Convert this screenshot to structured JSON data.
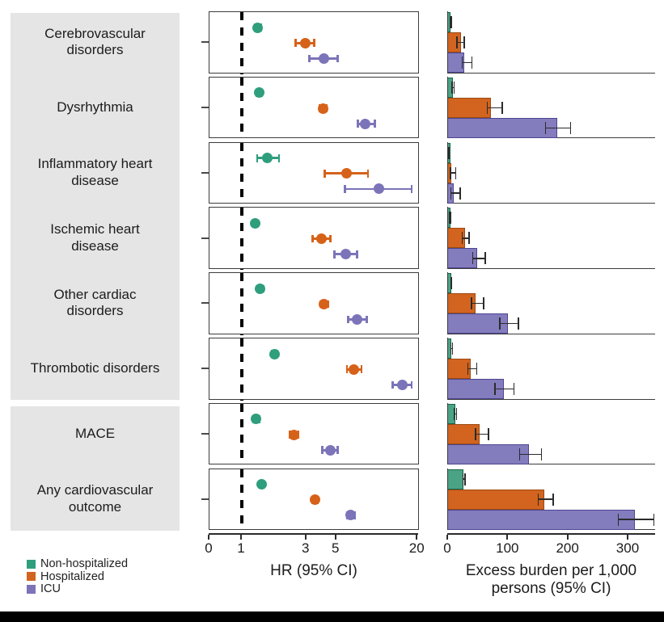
{
  "legend": {
    "items": [
      {
        "label": "Non-hospitalized",
        "color": "#2f9e7d"
      },
      {
        "label": "Hospitalized",
        "color": "#d2641f"
      },
      {
        "label": "ICU",
        "color": "#7b74b8"
      }
    ]
  },
  "colors": {
    "non_hospitalized_point": "#2f9e7d",
    "non_hospitalized_bar_fill": "#4aa385",
    "non_hospitalized_bar_border": "#17654c",
    "hospitalized_point": "#d6621a",
    "hospitalized_bar_fill": "#d2641f",
    "hospitalized_bar_border": "#9c4a12",
    "icu_point": "#7b74b8",
    "icu_bar_fill": "#837cbd",
    "icu_bar_border": "#4d4691",
    "label_box": "#e5e5e5",
    "reference_line": "#000000"
  },
  "categories": [
    "Cerebrovascular disorders",
    "Dysrhythmia",
    "Inflammatory heart disease",
    "Ischemic heart disease",
    "Other cardiac disorders",
    "Thrombotic disorders",
    "MACE",
    "Any cardiovascular outcome"
  ],
  "chart_data": [
    {
      "type": "scatter",
      "subtype": "forest-plot",
      "xlabel": "HR (95% CI)",
      "xscale": "log",
      "xticks": [
        0,
        1,
        3,
        5,
        20
      ],
      "reference_line_x": 1,
      "legend_position": "bottom-left",
      "grid": false,
      "categories": [
        "Cerebrovascular disorders",
        "Dysrhythmia",
        "Inflammatory heart disease",
        "Ischemic heart disease",
        "Other cardiac disorders",
        "Thrombotic disorders",
        "MACE",
        "Any cardiovascular outcome"
      ],
      "series": [
        {
          "name": "Non-hospitalized",
          "values": [
            {
              "hr": 1.31,
              "lo": 1.25,
              "hi": 1.38
            },
            {
              "hr": 1.34,
              "lo": 1.28,
              "hi": 1.4
            },
            {
              "hr": 1.54,
              "lo": 1.3,
              "hi": 1.89
            },
            {
              "hr": 1.25,
              "lo": 1.2,
              "hi": 1.31
            },
            {
              "hr": 1.37,
              "lo": 1.31,
              "hi": 1.44
            },
            {
              "hr": 1.75,
              "lo": 1.67,
              "hi": 1.84
            },
            {
              "hr": 1.28,
              "lo": 1.22,
              "hi": 1.35
            },
            {
              "hr": 1.41,
              "lo": 1.38,
              "hi": 1.45
            }
          ]
        },
        {
          "name": "Hospitalized",
          "values": [
            {
              "hr": 2.94,
              "lo": 2.5,
              "hi": 3.45
            },
            {
              "hr": 3.99,
              "lo": 3.78,
              "hi": 4.22
            },
            {
              "hr": 5.96,
              "lo": 4.1,
              "hi": 8.6
            },
            {
              "hr": 3.88,
              "lo": 3.33,
              "hi": 4.52
            },
            {
              "hr": 4.06,
              "lo": 3.8,
              "hi": 4.35
            },
            {
              "hr": 6.78,
              "lo": 6.0,
              "hi": 7.7
            },
            {
              "hr": 2.44,
              "lo": 2.27,
              "hi": 2.63
            },
            {
              "hr": 3.5,
              "lo": 3.35,
              "hi": 3.66
            }
          ]
        },
        {
          "name": "ICU",
          "values": [
            {
              "hr": 4.03,
              "lo": 3.17,
              "hi": 5.12
            },
            {
              "hr": 8.24,
              "lo": 7.2,
              "hi": 9.7
            },
            {
              "hr": 10.4,
              "lo": 5.8,
              "hi": 18.1
            },
            {
              "hr": 5.88,
              "lo": 4.85,
              "hi": 7.15
            },
            {
              "hr": 7.16,
              "lo": 6.1,
              "hi": 8.4
            },
            {
              "hr": 15.4,
              "lo": 13.1,
              "hi": 18.1
            },
            {
              "hr": 4.52,
              "lo": 3.93,
              "hi": 5.15
            },
            {
              "hr": 6.39,
              "lo": 6.0,
              "hi": 6.85
            }
          ]
        }
      ]
    },
    {
      "type": "bar",
      "subtype": "horizontal-grouped",
      "xlabel_line1": "Excess burden per 1,000",
      "xlabel_line2": "persons (95% CI)",
      "xticks": [
        0,
        100,
        200,
        300
      ],
      "xlim": [
        0,
        345
      ],
      "grid": false,
      "categories": [
        "Cerebrovascular disorders",
        "Dysrhythmia",
        "Inflammatory heart disease",
        "Ischemic heart disease",
        "Other cardiac disorders",
        "Thrombotic disorders",
        "MACE",
        "Any cardiovascular outcome"
      ],
      "series": [
        {
          "name": "Non-hospitalized",
          "values": [
            {
              "est": 4,
              "lo": 3,
              "hi": 7
            },
            {
              "est": 8,
              "lo": 6,
              "hi": 11
            },
            {
              "est": 1,
              "lo": 0,
              "hi": 3
            },
            {
              "est": 3,
              "lo": 2,
              "hi": 6
            },
            {
              "est": 5,
              "lo": 4,
              "hi": 7
            },
            {
              "est": 5,
              "lo": 4,
              "hi": 8
            },
            {
              "est": 12,
              "lo": 9,
              "hi": 15
            },
            {
              "est": 26,
              "lo": 24,
              "hi": 29
            }
          ]
        },
        {
          "name": "Hospitalized",
          "values": [
            {
              "est": 21,
              "lo": 14,
              "hi": 28
            },
            {
              "est": 71,
              "lo": 64,
              "hi": 91
            },
            {
              "est": 6,
              "lo": 3,
              "hi": 14
            },
            {
              "est": 28,
              "lo": 23,
              "hi": 36
            },
            {
              "est": 46,
              "lo": 38,
              "hi": 60
            },
            {
              "est": 37,
              "lo": 32,
              "hi": 49
            },
            {
              "est": 52,
              "lo": 45,
              "hi": 68
            },
            {
              "est": 160,
              "lo": 149,
              "hi": 176
            }
          ]
        },
        {
          "name": "ICU",
          "values": [
            {
              "est": 27,
              "lo": 23,
              "hi": 41
            },
            {
              "est": 182,
              "lo": 161,
              "hi": 205
            },
            {
              "est": 10,
              "lo": 4,
              "hi": 21
            },
            {
              "est": 49,
              "lo": 40,
              "hi": 63
            },
            {
              "est": 99,
              "lo": 85,
              "hi": 118
            },
            {
              "est": 93,
              "lo": 77,
              "hi": 111
            },
            {
              "est": 135,
              "lo": 118,
              "hi": 156
            },
            {
              "est": 311,
              "lo": 282,
              "hi": 343
            }
          ]
        }
      ]
    }
  ]
}
